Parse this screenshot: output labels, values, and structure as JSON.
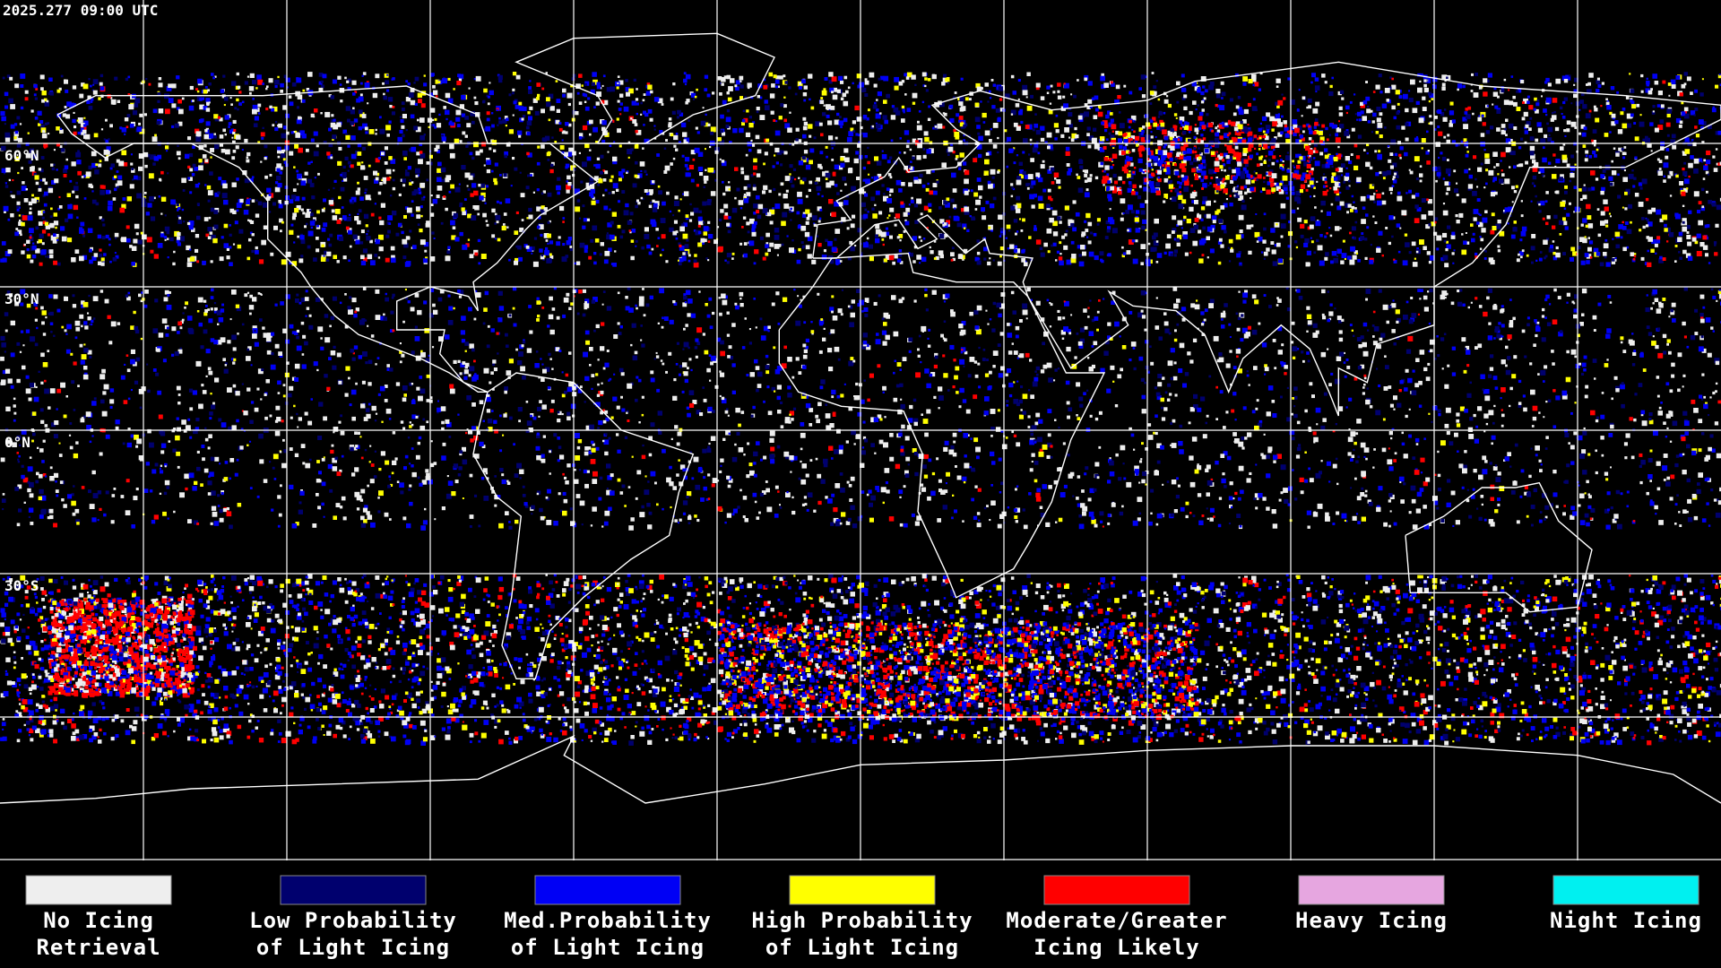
{
  "header": {
    "timestamp": "2025.277 09:00 UTC"
  },
  "map": {
    "latitude_labels": [
      "60°N",
      "30°N",
      "0°N",
      "30°S"
    ]
  },
  "legend": [
    {
      "lines": [
        "No Icing",
        "Retrieval"
      ],
      "color": "#eeeeee"
    },
    {
      "lines": [
        "Low Probability",
        "of Light Icing"
      ],
      "color": "#00006e"
    },
    {
      "lines": [
        "Med.Probability",
        "of Light Icing"
      ],
      "color": "#0000f5"
    },
    {
      "lines": [
        "High Probability",
        "of Light Icing"
      ],
      "color": "#ffff00"
    },
    {
      "lines": [
        "Moderate/Greater",
        "Icing Likely"
      ],
      "color": "#ff0000"
    },
    {
      "lines": [
        "Heavy Icing"
      ],
      "color": "#e6a6e0"
    },
    {
      "lines": [
        "Night Icing"
      ],
      "color": "#00f0f0"
    }
  ]
}
